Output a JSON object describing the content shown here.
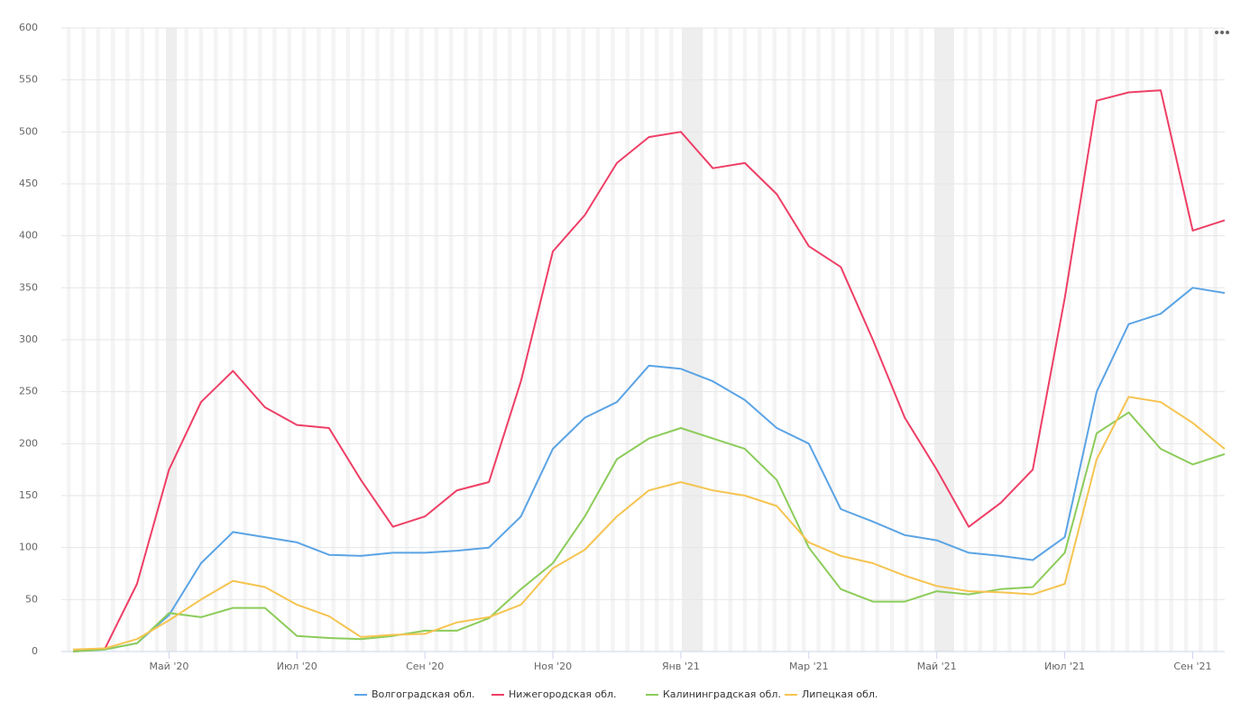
{
  "chart_data": {
    "type": "line",
    "categories": [
      null,
      null,
      null,
      "Май '20",
      null,
      null,
      null,
      "Июл '20",
      null,
      null,
      null,
      "Сен '20",
      null,
      null,
      null,
      "Ноя '20",
      null,
      null,
      null,
      "Янв '21",
      null,
      null,
      null,
      "Мар '21",
      null,
      null,
      null,
      "Май '21",
      null,
      null,
      null,
      "Июл '21",
      null,
      null,
      null,
      "Сен '21",
      null
    ],
    "series": [
      {
        "name": "Волгоградская обл.",
        "color": "#5ba4e5",
        "values": [
          0,
          2,
          8,
          35,
          85,
          115,
          110,
          105,
          93,
          92,
          95,
          95,
          97,
          100,
          130,
          195,
          225,
          240,
          275,
          272,
          260,
          242,
          215,
          200,
          137,
          125,
          112,
          107,
          95,
          92,
          88,
          110,
          250,
          315,
          325,
          350,
          345
        ]
      },
      {
        "name": "Нижегородская обл.",
        "color": "#ee3f66",
        "values": [
          0,
          3,
          65,
          175,
          240,
          270,
          235,
          218,
          215,
          165,
          120,
          130,
          155,
          163,
          260,
          385,
          420,
          470,
          495,
          500,
          465,
          470,
          440,
          390,
          370,
          300,
          225,
          175,
          120,
          143,
          175,
          340,
          530,
          538,
          540,
          405,
          415
        ]
      },
      {
        "name": "Калининградская обл.",
        "color": "#8ccc5a",
        "values": [
          0,
          2,
          8,
          37,
          33,
          42,
          42,
          15,
          13,
          12,
          15,
          20,
          20,
          32,
          60,
          85,
          130,
          185,
          205,
          215,
          205,
          195,
          165,
          100,
          60,
          48,
          48,
          58,
          55,
          60,
          62,
          95,
          210,
          230,
          195,
          180,
          190
        ]
      },
      {
        "name": "Липецкая обл.",
        "color": "#f5c451",
        "values": [
          2,
          3,
          12,
          30,
          50,
          68,
          62,
          45,
          34,
          14,
          16,
          17,
          28,
          33,
          45,
          80,
          98,
          130,
          155,
          163,
          155,
          150,
          140,
          105,
          92,
          85,
          73,
          63,
          58,
          57,
          55,
          65,
          185,
          245,
          240,
          220,
          195
        ]
      }
    ],
    "ylim": [
      0,
      600
    ],
    "yticks": [
      0,
      50,
      100,
      150,
      200,
      250,
      300,
      350,
      400,
      450,
      500,
      550,
      600
    ],
    "grid": true
  }
}
